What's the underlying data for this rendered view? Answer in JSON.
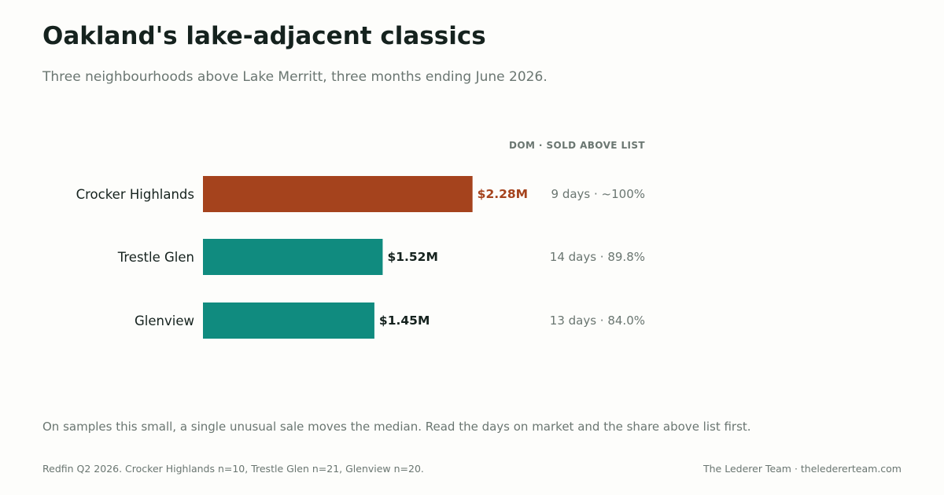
{
  "header": {
    "title": "Oakland's lake-adjacent classics",
    "subtitle": "Three neighbourhoods above Lake Merritt, three months ending June 2026."
  },
  "colors": {
    "highlight": "#a5431d",
    "bar": "#108b7f",
    "value_text": "#15221e",
    "muted": "#6a7671"
  },
  "chart_data": {
    "type": "bar",
    "orientation": "horizontal",
    "categories": [
      "Crocker Highlands",
      "Trestle Glen",
      "Glenview"
    ],
    "values": [
      2.28,
      1.52,
      1.45
    ],
    "value_labels": [
      "$2.28M",
      "$1.52M",
      "$1.45M"
    ],
    "highlight_index": 0,
    "xlim": [
      0,
      3.4
    ],
    "stats_header": "DOM · SOLD ABOVE LIST",
    "stats": [
      "9 days · ~100%",
      "14 days · 89.8%",
      "13 days · 84.0%"
    ],
    "grid": false
  },
  "footer": {
    "note": "On samples this small, a single unusual sale moves the median. Read the days on market and the share above list first.",
    "source": "Redfin Q2 2026. Crocker Highlands n=10, Trestle Glen n=21, Glenview n=20.",
    "credit": "The Lederer Team  ·  theledererteam.com"
  }
}
